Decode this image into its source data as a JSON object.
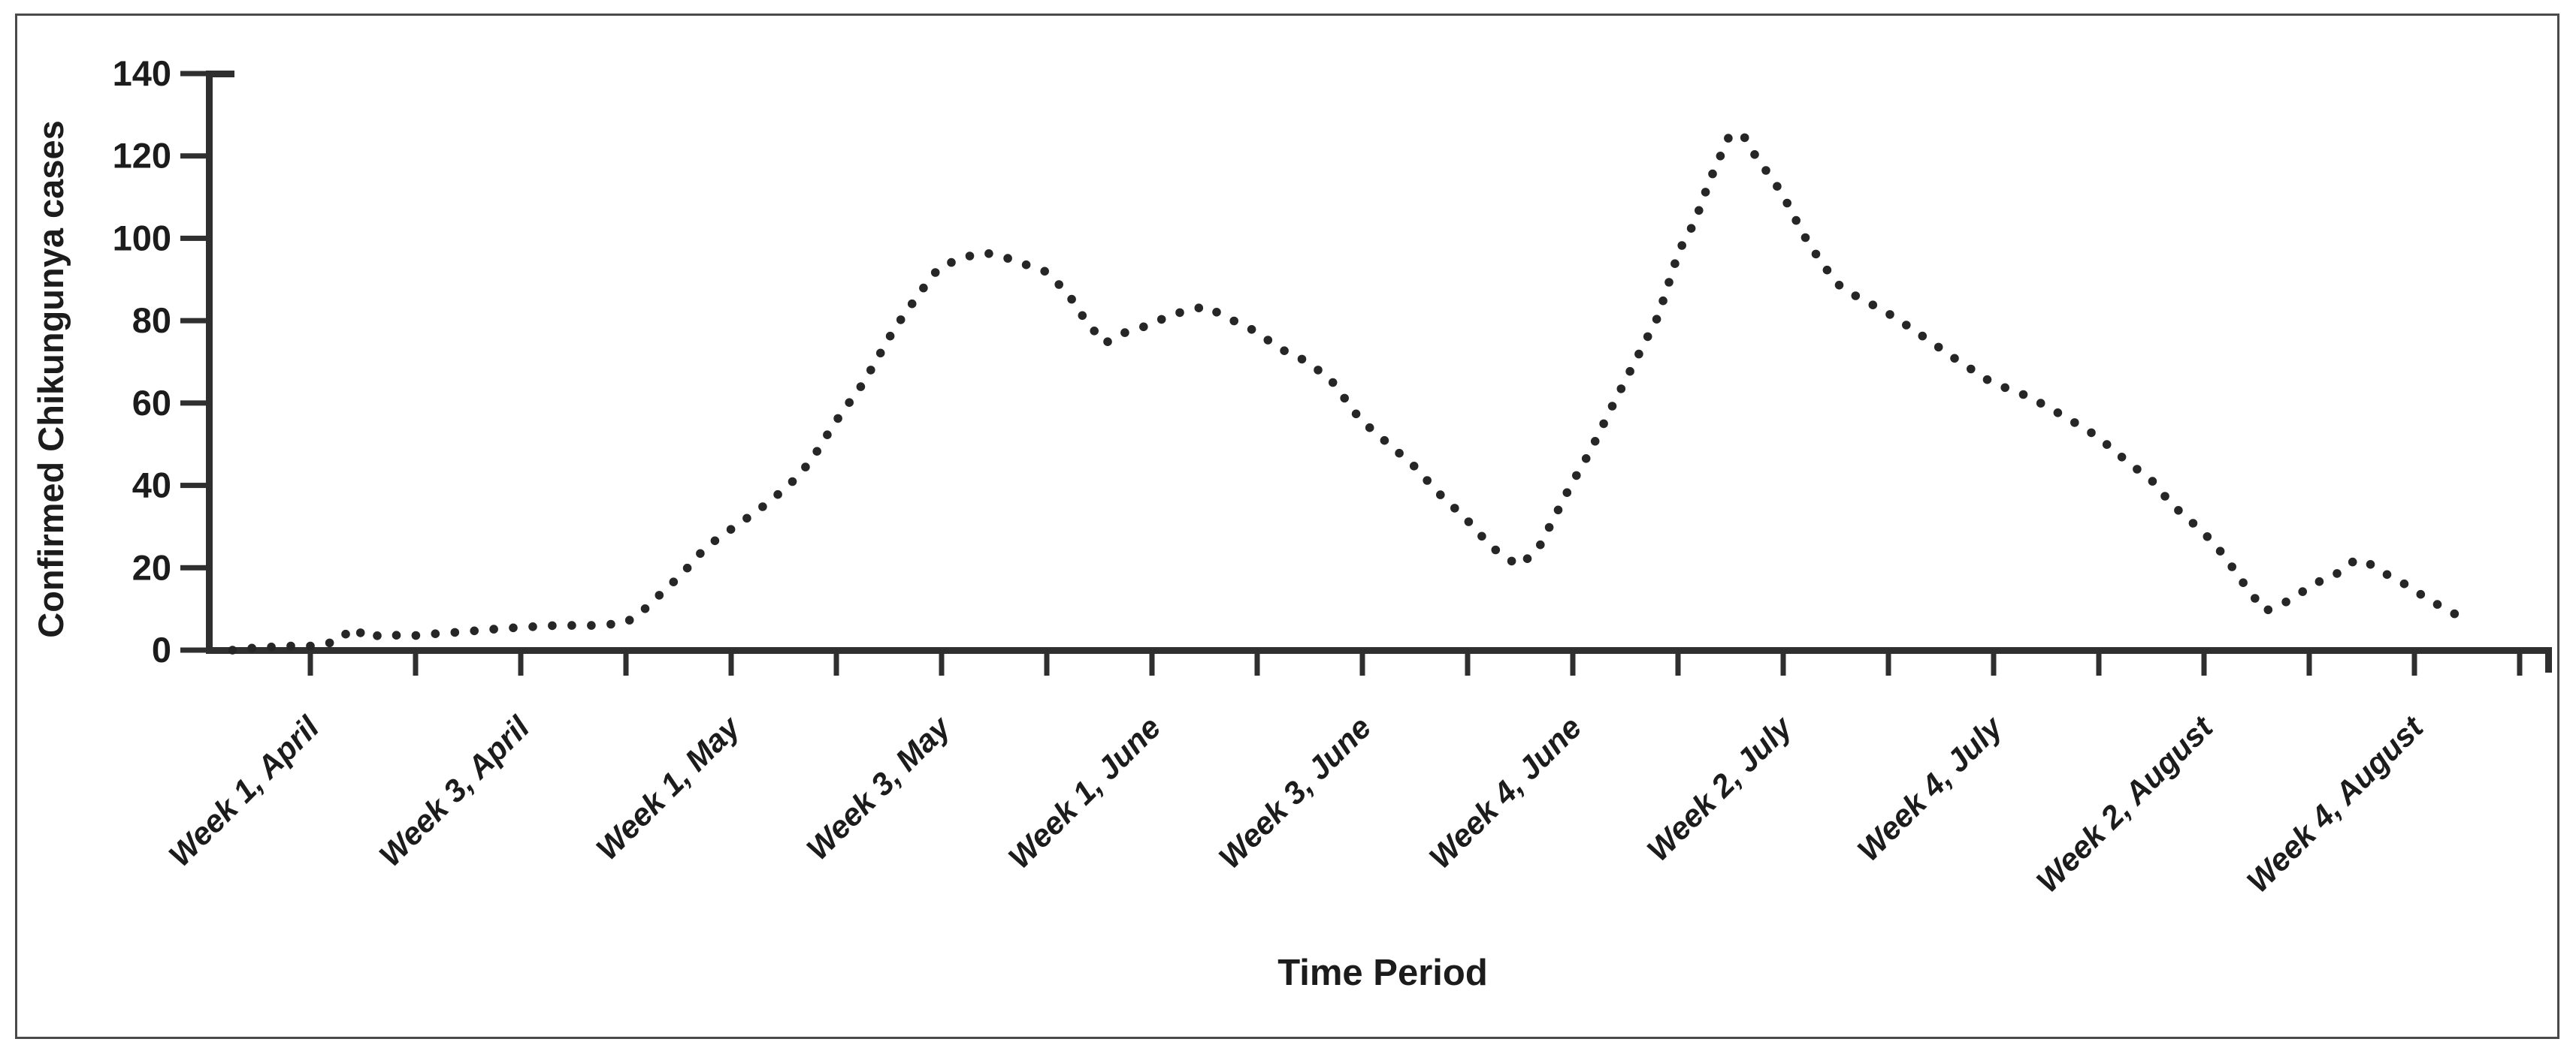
{
  "figure": {
    "background": "#ffffff",
    "border_color": "#4a4a4a"
  },
  "chart_data": {
    "type": "line",
    "line_style": "dotted",
    "series_color": "#262626",
    "axis_color": "#2f2f2f",
    "title": "",
    "xlabel": "Time Period",
    "ylabel": "Confirmed Chikungunya cases",
    "ylim": [
      0,
      140
    ],
    "yticks": [
      0,
      20,
      40,
      60,
      80,
      100,
      120,
      140
    ],
    "x_tick_count": 22,
    "grid": "off",
    "legend": "none",
    "x_labels": [
      {
        "tick": 1,
        "label": "Week 1, April"
      },
      {
        "tick": 3,
        "label": "Week 3, April"
      },
      {
        "tick": 5,
        "label": "Week 1, May"
      },
      {
        "tick": 7,
        "label": "Week 3, May"
      },
      {
        "tick": 9,
        "label": "Week 1, June"
      },
      {
        "tick": 11,
        "label": "Week 3, June"
      },
      {
        "tick": 13,
        "label": "Week 4, June"
      },
      {
        "tick": 15,
        "label": "Week 2, July"
      },
      {
        "tick": 17,
        "label": "Week 4, July"
      },
      {
        "tick": 19,
        "label": "Week 2, August"
      },
      {
        "tick": 21,
        "label": "Week 4, August"
      }
    ],
    "week_values": [
      [
        "Week 1, April",
        1
      ],
      [
        "Week 3, April",
        5
      ],
      [
        "Week 1, May",
        29
      ],
      [
        "Week 3, May",
        93
      ],
      [
        "Week 1, June",
        79
      ],
      [
        "Week 3, June",
        56
      ],
      [
        "Week 4, June",
        40
      ],
      [
        "Week 2, July",
        110
      ],
      [
        "Week 4, July",
        65
      ],
      [
        "Week 2, August",
        29
      ],
      [
        "Week 4, August",
        14
      ]
    ],
    "curve_points_week_units": [
      [
        0.26,
        0
      ],
      [
        0.4,
        0.5
      ],
      [
        0.55,
        0.5
      ],
      [
        0.7,
        1
      ],
      [
        0.85,
        1
      ],
      [
        1.0,
        1
      ],
      [
        1.15,
        1.5
      ],
      [
        1.28,
        2.5
      ],
      [
        1.33,
        4
      ],
      [
        1.4,
        2.5
      ],
      [
        1.49,
        4.5
      ],
      [
        1.57,
        3
      ],
      [
        1.7,
        4
      ],
      [
        1.85,
        3.5
      ],
      [
        1.98,
        3.5
      ],
      [
        2.2,
        4
      ],
      [
        2.48,
        4.5
      ],
      [
        2.7,
        5
      ],
      [
        2.98,
        5.5
      ],
      [
        3.34,
        6
      ],
      [
        3.69,
        6
      ],
      [
        3.98,
        6.5
      ],
      [
        4.12,
        8.5
      ],
      [
        4.26,
        12
      ],
      [
        4.41,
        15.5
      ],
      [
        4.55,
        19
      ],
      [
        4.76,
        25
      ],
      [
        4.98,
        29
      ],
      [
        5.26,
        34
      ],
      [
        5.55,
        40
      ],
      [
        5.76,
        46
      ],
      [
        5.98,
        55
      ],
      [
        6.26,
        65
      ],
      [
        6.55,
        78
      ],
      [
        6.8,
        87
      ],
      [
        6.98,
        93
      ],
      [
        7.23,
        95.5
      ],
      [
        7.41,
        96.5
      ],
      [
        7.59,
        95.5
      ],
      [
        7.98,
        92
      ],
      [
        8.19,
        87
      ],
      [
        8.37,
        80
      ],
      [
        8.55,
        74.5
      ],
      [
        8.73,
        77
      ],
      [
        8.98,
        79
      ],
      [
        9.19,
        81.5
      ],
      [
        9.51,
        83.5
      ],
      [
        9.73,
        80.5
      ],
      [
        9.91,
        78.5
      ],
      [
        10.12,
        75
      ],
      [
        10.3,
        72
      ],
      [
        10.44,
        70.5
      ],
      [
        10.69,
        66
      ],
      [
        10.98,
        56
      ],
      [
        11.16,
        52
      ],
      [
        11.48,
        45
      ],
      [
        11.73,
        38
      ],
      [
        11.98,
        32
      ],
      [
        12.23,
        25
      ],
      [
        12.48,
        20.5
      ],
      [
        12.66,
        24
      ],
      [
        12.84,
        33
      ],
      [
        12.98,
        40
      ],
      [
        13.16,
        48
      ],
      [
        13.37,
        59
      ],
      [
        13.59,
        70
      ],
      [
        13.81,
        81
      ],
      [
        14.01,
        97
      ],
      [
        14.16,
        104
      ],
      [
        14.3,
        114
      ],
      [
        14.49,
        125
      ],
      [
        14.62,
        125
      ],
      [
        14.76,
        119
      ],
      [
        14.91,
        114
      ],
      [
        15.05,
        108
      ],
      [
        15.19,
        101
      ],
      [
        15.34,
        95
      ],
      [
        15.51,
        89
      ],
      [
        15.69,
        86
      ],
      [
        15.84,
        84
      ],
      [
        16.05,
        81
      ],
      [
        16.34,
        76
      ],
      [
        16.62,
        71
      ],
      [
        16.98,
        65
      ],
      [
        17.34,
        61.5
      ],
      [
        17.69,
        56.5
      ],
      [
        17.98,
        52
      ],
      [
        18.26,
        46
      ],
      [
        18.51,
        41
      ],
      [
        18.69,
        35.5
      ],
      [
        18.84,
        32
      ],
      [
        18.98,
        29
      ],
      [
        19.19,
        23
      ],
      [
        19.41,
        15
      ],
      [
        19.58,
        9.5
      ],
      [
        19.73,
        11
      ],
      [
        19.87,
        13
      ],
      [
        20.01,
        15.5
      ],
      [
        20.16,
        17.5
      ],
      [
        20.3,
        19
      ],
      [
        20.44,
        22
      ],
      [
        20.62,
        20.5
      ],
      [
        20.76,
        18
      ],
      [
        20.91,
        16
      ],
      [
        21.03,
        14
      ],
      [
        21.19,
        11.5
      ],
      [
        21.33,
        9.5
      ],
      [
        21.48,
        7.5
      ]
    ]
  }
}
